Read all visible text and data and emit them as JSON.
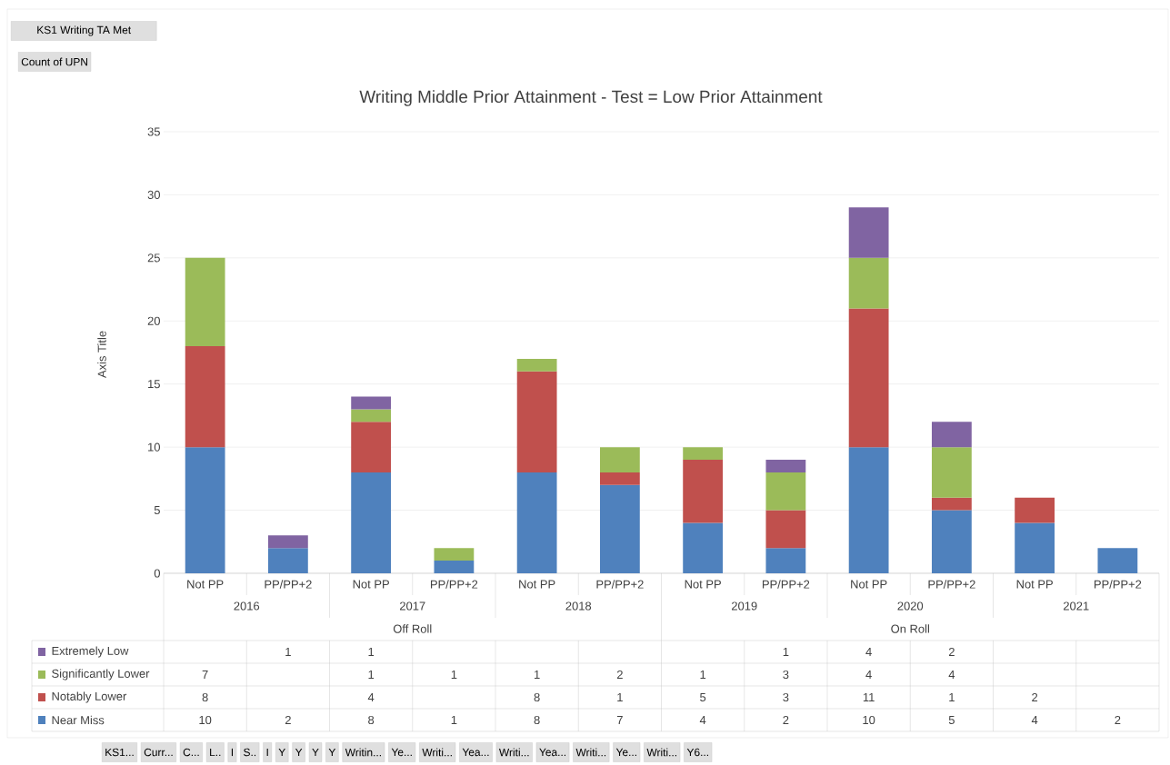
{
  "chart_data": {
    "type": "bar",
    "stacked": true,
    "title": "Writing Middle Prior Attainment  - Test = Low Prior Attainment",
    "ylabel": "Axis Title",
    "categories": [
      "Not PP",
      "PP/PP+2",
      "Not PP",
      "PP/PP+2",
      "Not PP",
      "PP/PP+2",
      "Not PP",
      "PP/PP+2",
      "Not PP",
      "PP/PP+2",
      "Not PP",
      "PP/PP+2"
    ],
    "series": [
      {
        "name": "Near Miss",
        "color": "#4f81bd",
        "values": [
          10,
          2,
          8,
          1,
          8,
          7,
          4,
          2,
          10,
          5,
          4,
          2
        ]
      },
      {
        "name": "Notably Lower",
        "color": "#c0504d",
        "values": [
          8,
          null,
          4,
          null,
          8,
          1,
          5,
          3,
          11,
          1,
          2,
          null
        ]
      },
      {
        "name": "Significantly Lower",
        "color": "#9bbb59",
        "values": [
          7,
          null,
          1,
          1,
          1,
          2,
          1,
          3,
          4,
          4,
          null,
          null
        ]
      },
      {
        "name": "Extremely Low",
        "color": "#8064a2",
        "values": [
          null,
          1,
          1,
          null,
          null,
          null,
          null,
          1,
          4,
          2,
          null,
          null
        ]
      }
    ],
    "ylim": [
      0,
      35
    ],
    "yticks": [
      0,
      5,
      10,
      15,
      20,
      25,
      30,
      35
    ],
    "grid": "y",
    "data_labels": true,
    "legend": "bottom",
    "annotations": [
      "KS1 Writing TA Met",
      "Count of UPN",
      "2016",
      "2017",
      "2018",
      "2019",
      "2020",
      "2021",
      "Off Roll",
      "On Roll",
      "KS1...",
      "Curr...",
      "C...",
      "L..",
      "I",
      "S..",
      "I",
      "Y",
      "Y",
      "Y",
      "Y",
      "Writin...",
      "Ye...",
      "Writi...",
      "Yea...",
      "Writi...",
      "Yea...",
      "Writi...",
      "Ye...",
      "Writi...",
      "Y6..."
    ]
  }
}
